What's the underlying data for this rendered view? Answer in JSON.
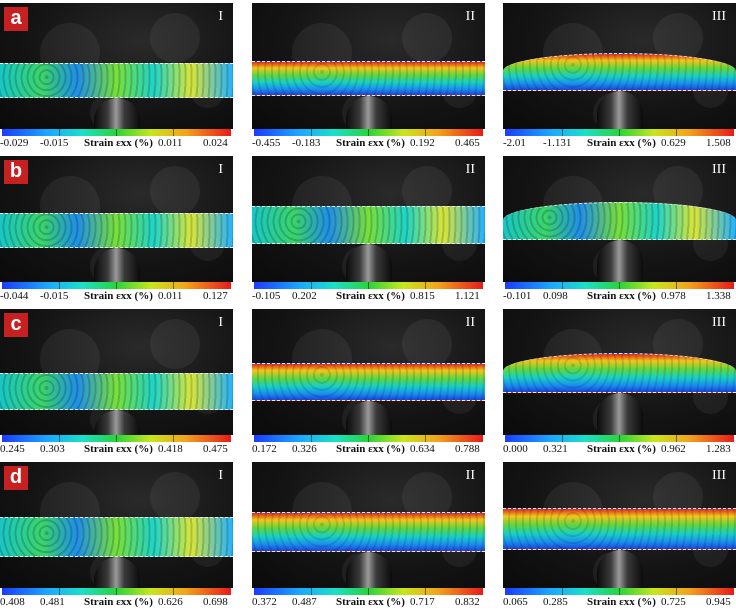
{
  "figure": {
    "rows": [
      {
        "letter": "a",
        "panels": [
          {
            "stage": "I",
            "colorbar": {
              "ticks": [
                "-0.029",
                "-0.015",
                "0.011",
                "0.024"
              ],
              "label": "Strain εxx (%)"
            }
          },
          {
            "stage": "II",
            "colorbar": {
              "ticks": [
                "-0.455",
                "-0.183",
                "0.192",
                "0.465"
              ],
              "label": "Strain εxx (%)"
            }
          },
          {
            "stage": "III",
            "colorbar": {
              "ticks": [
                "-2.01",
                "-1.131",
                "0.629",
                "1.508"
              ],
              "label": "Strain εxx (%)"
            }
          }
        ]
      },
      {
        "letter": "b",
        "panels": [
          {
            "stage": "I",
            "colorbar": {
              "ticks": [
                "-0.044",
                "-0.015",
                "0.011",
                "0.127"
              ],
              "label": "Strain εxx (%)"
            }
          },
          {
            "stage": "II",
            "colorbar": {
              "ticks": [
                "-0.105",
                "0.202",
                "0.815",
                "1.121"
              ],
              "label": "Strain εxx (%)"
            }
          },
          {
            "stage": "III",
            "colorbar": {
              "ticks": [
                "-0.101",
                "0.098",
                "0.978",
                "1.338"
              ],
              "label": "Strain εxx (%)"
            }
          }
        ]
      },
      {
        "letter": "c",
        "panels": [
          {
            "stage": "I",
            "colorbar": {
              "ticks": [
                "0.245",
                "0.303",
                "0.418",
                "0.475"
              ],
              "label": "Strain εxx (%)"
            }
          },
          {
            "stage": "II",
            "colorbar": {
              "ticks": [
                "0.172",
                "0.326",
                "0.634",
                "0.788"
              ],
              "label": "Strain εxx (%)"
            }
          },
          {
            "stage": "III",
            "colorbar": {
              "ticks": [
                "0.000",
                "0.321",
                "0.962",
                "1.283"
              ],
              "label": "Strain εxx (%)"
            }
          }
        ]
      },
      {
        "letter": "d",
        "panels": [
          {
            "stage": "I",
            "colorbar": {
              "ticks": [
                "0.408",
                "0.481",
                "0.626",
                "0.698"
              ],
              "label": "Strain εxx (%)"
            }
          },
          {
            "stage": "II",
            "colorbar": {
              "ticks": [
                "0.372",
                "0.487",
                "0.717",
                "0.832"
              ],
              "label": "Strain εxx (%)"
            }
          },
          {
            "stage": "III",
            "colorbar": {
              "ticks": [
                "0.065",
                "0.285",
                "0.725",
                "0.945"
              ],
              "label": "Strain εxx (%)"
            }
          }
        ]
      }
    ]
  },
  "colors": {
    "letter_badge": "#c62020",
    "colormap": [
      "#1a3cff",
      "#1aa8ff",
      "#1ae0c8",
      "#28d43a",
      "#c8e61a",
      "#f2a51a",
      "#e81a1a"
    ]
  }
}
